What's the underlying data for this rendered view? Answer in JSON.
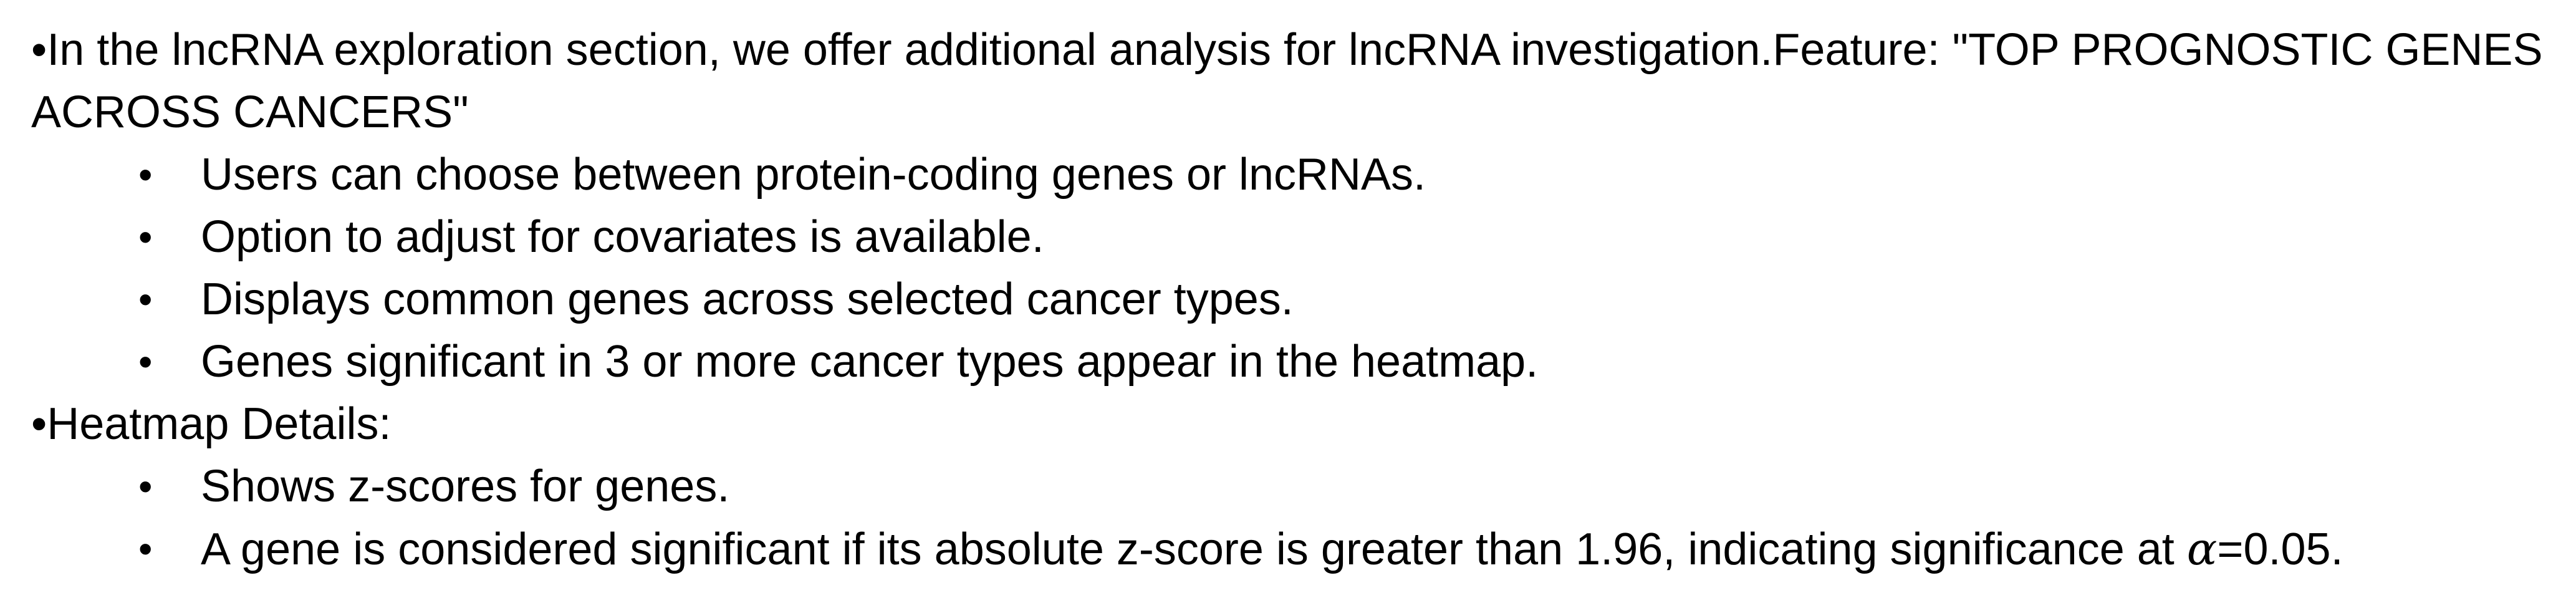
{
  "content": {
    "section1": {
      "lead": "In the lncRNA exploration section, we offer additional analysis for lncRNA investigation.Feature: \"TOP PROGNOSTIC GENES ACROSS CANCERS\"",
      "items": [
        "Users can choose between protein-coding genes or lncRNAs.",
        "Option to adjust for covariates is available.",
        "Displays common genes across selected cancer types.",
        "Genes significant in 3 or more cancer types appear in the heatmap."
      ]
    },
    "section2": {
      "lead": "Heatmap Details:",
      "items": [
        "Shows z-scores for genes."
      ],
      "last_item": {
        "before": "A gene is considered significant if its absolute z-score is greater than 1.96, indicating significance at ",
        "symbol": "α",
        "after": "=0.05."
      }
    },
    "bullet_char": "•"
  }
}
